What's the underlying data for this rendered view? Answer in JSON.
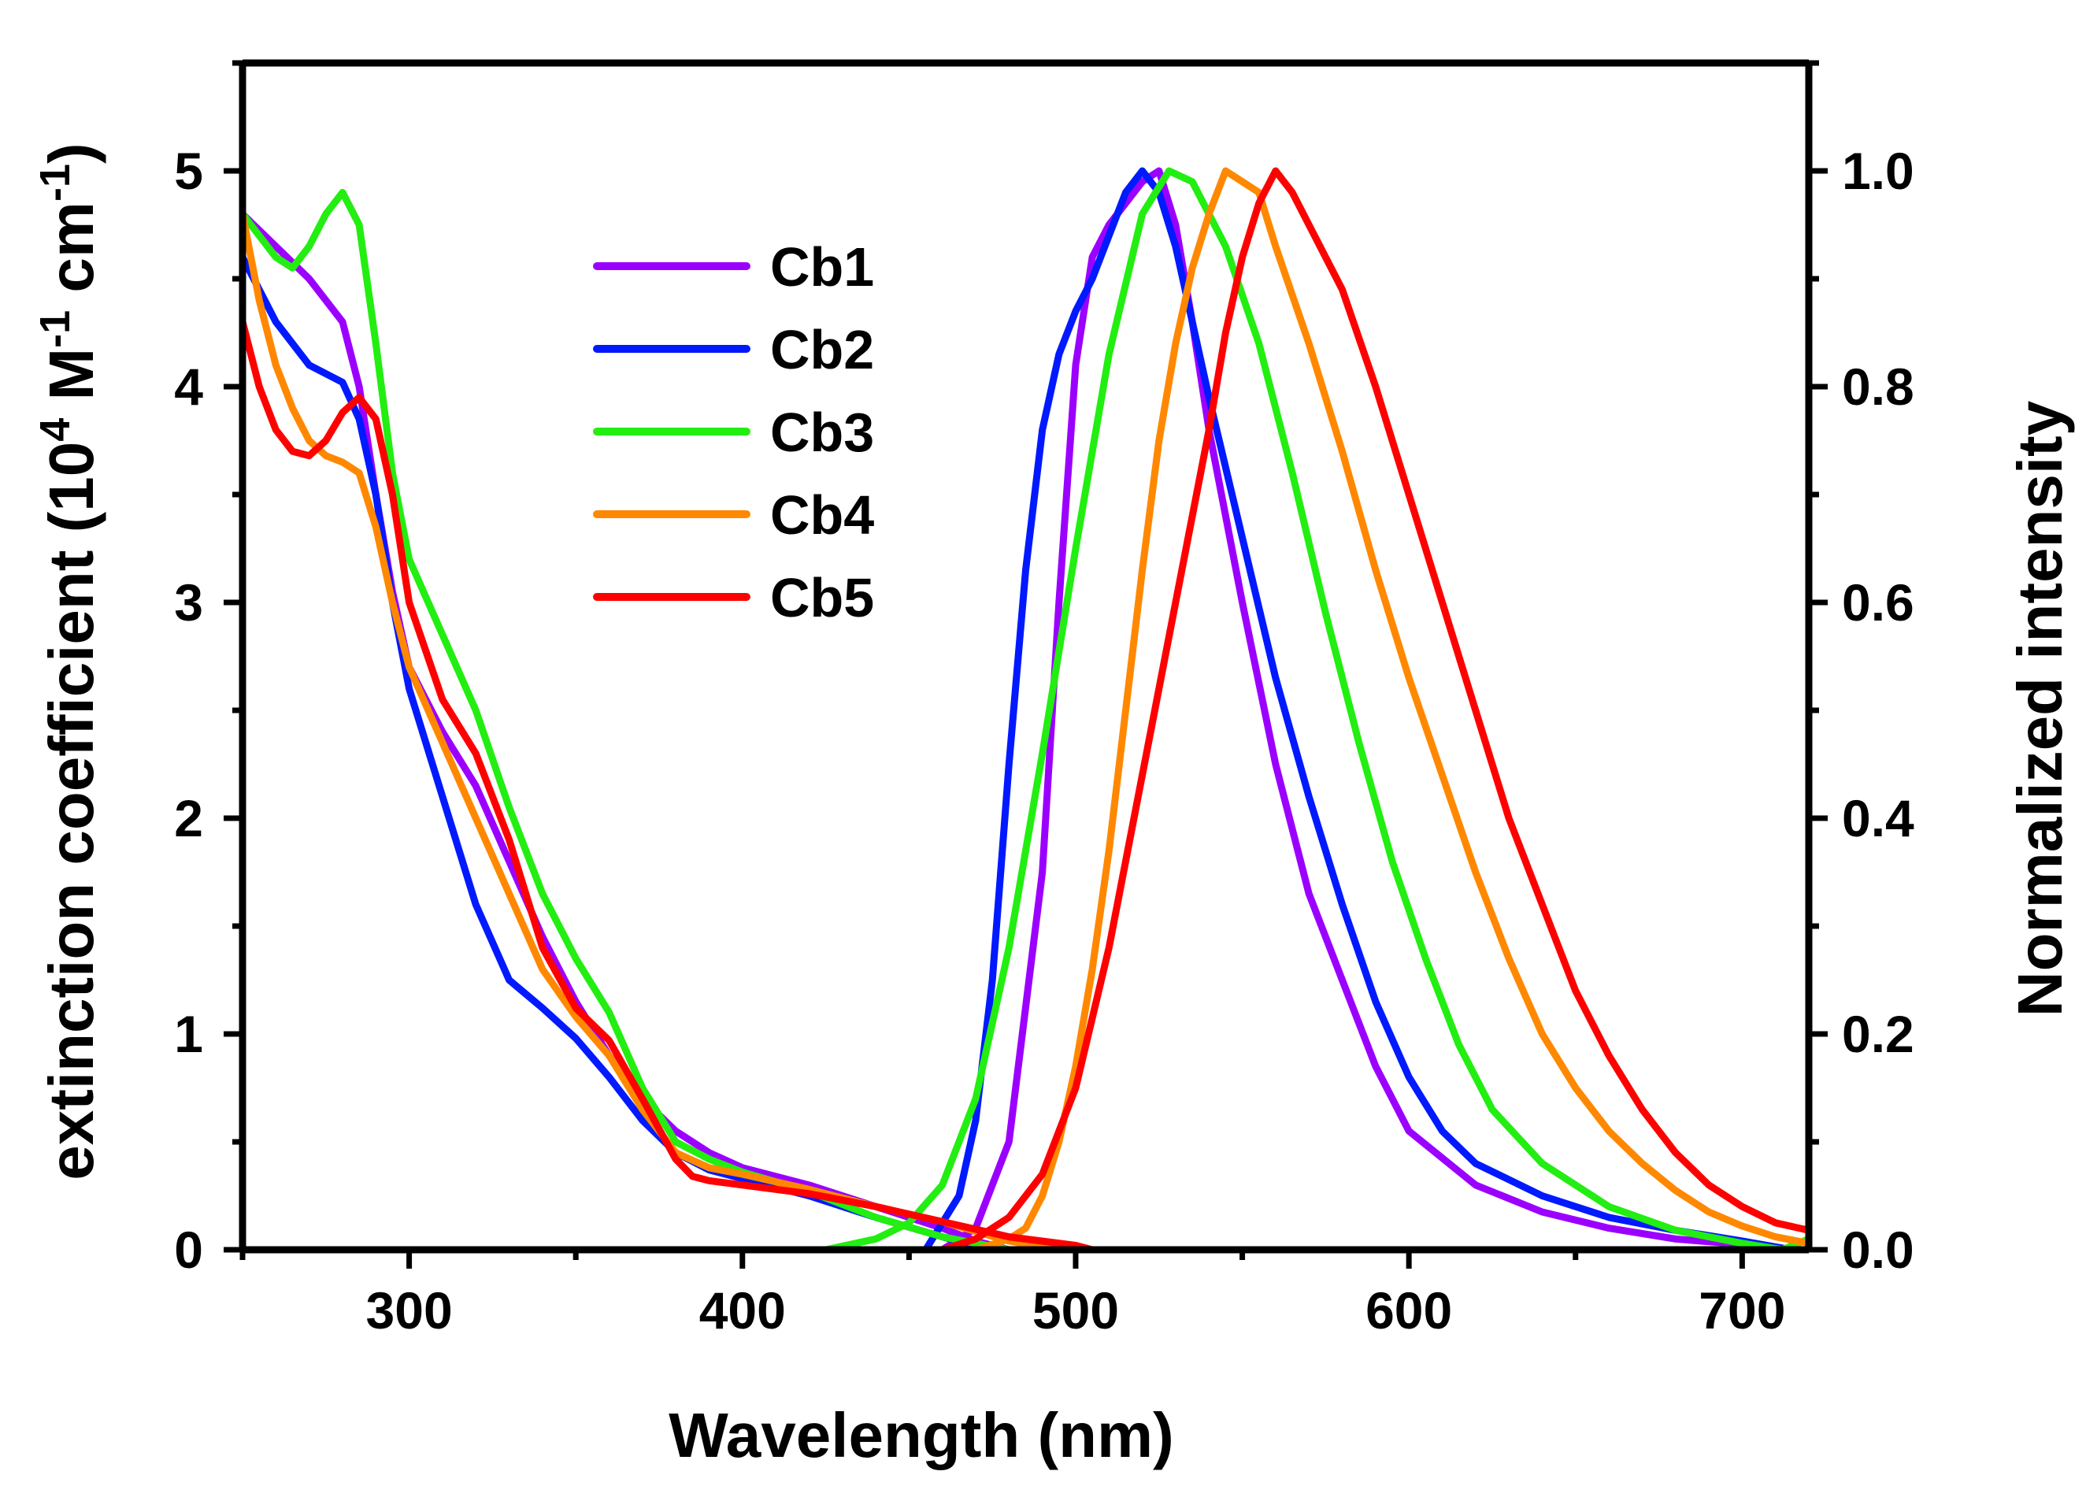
{
  "chart_data": {
    "type": "line",
    "title": "",
    "xlabel": "Wavelength (nm)",
    "ylabel_left": {
      "text": "extinction coefficient (10",
      "sup1": "4",
      "mid1": " M",
      "sup2": "-1",
      "mid2": " cm",
      "sup3": "-1",
      "end": ")"
    },
    "ylabel_right": "Normalized intensity",
    "xlim": [
      250,
      720
    ],
    "ylim_left": [
      0,
      5.5
    ],
    "ylim_right": [
      0,
      1.1
    ],
    "x_ticks": [
      300,
      400,
      500,
      600,
      700
    ],
    "y_ticks_left": [
      0,
      1,
      2,
      3,
      4,
      5
    ],
    "y_ticks_right": [
      0.0,
      0.2,
      0.4,
      0.6,
      0.8,
      1.0
    ],
    "x_tick_labels": [
      "300",
      "400",
      "500",
      "600",
      "700"
    ],
    "y_tick_labels_left": [
      "0",
      "1",
      "2",
      "3",
      "4",
      "5"
    ],
    "y_tick_labels_right": [
      "0.0",
      "0.2",
      "0.4",
      "0.6",
      "0.8",
      "1.0"
    ],
    "legend": [
      "Cb1",
      "Cb2",
      "Cb3",
      "Cb4",
      "Cb5"
    ],
    "legend_position": "upper-left",
    "series": [
      {
        "name": "Cb1",
        "color": "#9b00ff",
        "absorption": [
          [
            250,
            4.8
          ],
          [
            260,
            4.65
          ],
          [
            270,
            4.5
          ],
          [
            280,
            4.3
          ],
          [
            285,
            4.0
          ],
          [
            290,
            3.5
          ],
          [
            295,
            3.05
          ],
          [
            300,
            2.7
          ],
          [
            310,
            2.4
          ],
          [
            320,
            2.15
          ],
          [
            330,
            1.8
          ],
          [
            340,
            1.45
          ],
          [
            350,
            1.15
          ],
          [
            360,
            0.9
          ],
          [
            370,
            0.7
          ],
          [
            380,
            0.55
          ],
          [
            390,
            0.45
          ],
          [
            400,
            0.38
          ],
          [
            420,
            0.3
          ],
          [
            440,
            0.2
          ],
          [
            460,
            0.1
          ],
          [
            470,
            0.04
          ],
          [
            480,
            0.0
          ]
        ],
        "emission": [
          [
            460,
            0.0
          ],
          [
            470,
            0.02
          ],
          [
            480,
            0.1
          ],
          [
            490,
            0.35
          ],
          [
            495,
            0.6
          ],
          [
            500,
            0.82
          ],
          [
            505,
            0.92
          ],
          [
            510,
            0.95
          ],
          [
            515,
            0.97
          ],
          [
            520,
            0.99
          ],
          [
            525,
            1.0
          ],
          [
            530,
            0.95
          ],
          [
            535,
            0.86
          ],
          [
            540,
            0.76
          ],
          [
            550,
            0.6
          ],
          [
            560,
            0.45
          ],
          [
            570,
            0.33
          ],
          [
            580,
            0.25
          ],
          [
            590,
            0.17
          ],
          [
            600,
            0.11
          ],
          [
            620,
            0.06
          ],
          [
            640,
            0.035
          ],
          [
            660,
            0.02
          ],
          [
            680,
            0.01
          ],
          [
            700,
            0.005
          ],
          [
            715,
            0.0
          ]
        ]
      },
      {
        "name": "Cb2",
        "color": "#0019ff",
        "absorption": [
          [
            250,
            4.6
          ],
          [
            260,
            4.3
          ],
          [
            270,
            4.1
          ],
          [
            280,
            4.02
          ],
          [
            285,
            3.85
          ],
          [
            290,
            3.5
          ],
          [
            295,
            3.0
          ],
          [
            300,
            2.6
          ],
          [
            310,
            2.1
          ],
          [
            320,
            1.6
          ],
          [
            330,
            1.25
          ],
          [
            340,
            1.12
          ],
          [
            350,
            0.98
          ],
          [
            360,
            0.8
          ],
          [
            370,
            0.6
          ],
          [
            380,
            0.45
          ],
          [
            390,
            0.37
          ],
          [
            400,
            0.33
          ],
          [
            420,
            0.25
          ],
          [
            440,
            0.15
          ],
          [
            460,
            0.06
          ],
          [
            470,
            0.02
          ],
          [
            480,
            0.0
          ]
        ],
        "emission": [
          [
            455,
            0.0
          ],
          [
            465,
            0.05
          ],
          [
            470,
            0.12
          ],
          [
            475,
            0.25
          ],
          [
            480,
            0.45
          ],
          [
            485,
            0.63
          ],
          [
            490,
            0.76
          ],
          [
            495,
            0.83
          ],
          [
            500,
            0.87
          ],
          [
            505,
            0.9
          ],
          [
            510,
            0.94
          ],
          [
            515,
            0.98
          ],
          [
            520,
            1.0
          ],
          [
            525,
            0.98
          ],
          [
            530,
            0.93
          ],
          [
            540,
            0.79
          ],
          [
            550,
            0.66
          ],
          [
            560,
            0.53
          ],
          [
            570,
            0.42
          ],
          [
            580,
            0.32
          ],
          [
            590,
            0.23
          ],
          [
            600,
            0.16
          ],
          [
            610,
            0.11
          ],
          [
            620,
            0.08
          ],
          [
            640,
            0.05
          ],
          [
            660,
            0.03
          ],
          [
            680,
            0.018
          ],
          [
            700,
            0.008
          ],
          [
            715,
            0.0
          ]
        ]
      },
      {
        "name": "Cb3",
        "color": "#22ee11",
        "absorption": [
          [
            250,
            4.8
          ],
          [
            260,
            4.6
          ],
          [
            265,
            4.55
          ],
          [
            270,
            4.65
          ],
          [
            275,
            4.8
          ],
          [
            280,
            4.9
          ],
          [
            285,
            4.75
          ],
          [
            290,
            4.2
          ],
          [
            295,
            3.6
          ],
          [
            300,
            3.2
          ],
          [
            310,
            2.85
          ],
          [
            320,
            2.5
          ],
          [
            330,
            2.05
          ],
          [
            340,
            1.65
          ],
          [
            350,
            1.35
          ],
          [
            360,
            1.1
          ],
          [
            370,
            0.75
          ],
          [
            380,
            0.5
          ],
          [
            390,
            0.42
          ],
          [
            400,
            0.36
          ],
          [
            420,
            0.27
          ],
          [
            440,
            0.15
          ],
          [
            460,
            0.06
          ],
          [
            480,
            0.0
          ]
        ],
        "emission": [
          [
            425,
            0.0
          ],
          [
            440,
            0.01
          ],
          [
            450,
            0.025
          ],
          [
            460,
            0.06
          ],
          [
            470,
            0.14
          ],
          [
            480,
            0.28
          ],
          [
            490,
            0.46
          ],
          [
            500,
            0.65
          ],
          [
            510,
            0.83
          ],
          [
            520,
            0.96
          ],
          [
            528,
            1.0
          ],
          [
            535,
            0.99
          ],
          [
            545,
            0.93
          ],
          [
            555,
            0.84
          ],
          [
            565,
            0.72
          ],
          [
            575,
            0.59
          ],
          [
            585,
            0.47
          ],
          [
            595,
            0.36
          ],
          [
            605,
            0.27
          ],
          [
            615,
            0.19
          ],
          [
            625,
            0.13
          ],
          [
            640,
            0.08
          ],
          [
            660,
            0.04
          ],
          [
            680,
            0.018
          ],
          [
            700,
            0.006
          ],
          [
            712,
            0.0
          ],
          [
            720,
            0.01
          ]
        ]
      },
      {
        "name": "Cb4",
        "color": "#ff8800",
        "absorption": [
          [
            250,
            4.8
          ],
          [
            255,
            4.4
          ],
          [
            260,
            4.1
          ],
          [
            265,
            3.9
          ],
          [
            270,
            3.75
          ],
          [
            275,
            3.68
          ],
          [
            280,
            3.65
          ],
          [
            285,
            3.6
          ],
          [
            290,
            3.35
          ],
          [
            295,
            3.0
          ],
          [
            300,
            2.7
          ],
          [
            310,
            2.35
          ],
          [
            320,
            2.0
          ],
          [
            330,
            1.65
          ],
          [
            340,
            1.3
          ],
          [
            350,
            1.08
          ],
          [
            360,
            0.9
          ],
          [
            370,
            0.65
          ],
          [
            380,
            0.45
          ],
          [
            390,
            0.38
          ],
          [
            400,
            0.35
          ],
          [
            420,
            0.28
          ],
          [
            440,
            0.2
          ],
          [
            460,
            0.13
          ],
          [
            480,
            0.04
          ],
          [
            495,
            0.0
          ]
        ],
        "emission": [
          [
            470,
            0.0
          ],
          [
            480,
            0.01
          ],
          [
            485,
            0.02
          ],
          [
            490,
            0.05
          ],
          [
            495,
            0.1
          ],
          [
            500,
            0.17
          ],
          [
            505,
            0.26
          ],
          [
            510,
            0.37
          ],
          [
            515,
            0.5
          ],
          [
            520,
            0.63
          ],
          [
            525,
            0.75
          ],
          [
            530,
            0.84
          ],
          [
            535,
            0.91
          ],
          [
            540,
            0.96
          ],
          [
            545,
            1.0
          ],
          [
            550,
            0.99
          ],
          [
            555,
            0.98
          ],
          [
            560,
            0.93
          ],
          [
            570,
            0.84
          ],
          [
            580,
            0.74
          ],
          [
            590,
            0.63
          ],
          [
            600,
            0.53
          ],
          [
            610,
            0.44
          ],
          [
            620,
            0.35
          ],
          [
            630,
            0.27
          ],
          [
            640,
            0.2
          ],
          [
            650,
            0.15
          ],
          [
            660,
            0.11
          ],
          [
            670,
            0.08
          ],
          [
            680,
            0.055
          ],
          [
            690,
            0.035
          ],
          [
            700,
            0.022
          ],
          [
            710,
            0.012
          ],
          [
            720,
            0.006
          ]
        ]
      },
      {
        "name": "Cb5",
        "color": "#ff0000",
        "absorption": [
          [
            250,
            4.3
          ],
          [
            255,
            4.0
          ],
          [
            260,
            3.8
          ],
          [
            265,
            3.7
          ],
          [
            270,
            3.68
          ],
          [
            275,
            3.75
          ],
          [
            280,
            3.88
          ],
          [
            285,
            3.95
          ],
          [
            290,
            3.85
          ],
          [
            295,
            3.5
          ],
          [
            300,
            3.0
          ],
          [
            310,
            2.55
          ],
          [
            320,
            2.3
          ],
          [
            330,
            1.9
          ],
          [
            340,
            1.4
          ],
          [
            350,
            1.12
          ],
          [
            360,
            0.97
          ],
          [
            370,
            0.7
          ],
          [
            380,
            0.42
          ],
          [
            385,
            0.34
          ],
          [
            390,
            0.32
          ],
          [
            400,
            0.3
          ],
          [
            420,
            0.26
          ],
          [
            440,
            0.2
          ],
          [
            460,
            0.13
          ],
          [
            480,
            0.06
          ],
          [
            500,
            0.02
          ],
          [
            505,
            0.0
          ]
        ],
        "emission": [
          [
            460,
            0.0
          ],
          [
            470,
            0.01
          ],
          [
            480,
            0.03
          ],
          [
            490,
            0.07
          ],
          [
            500,
            0.15
          ],
          [
            510,
            0.28
          ],
          [
            520,
            0.44
          ],
          [
            530,
            0.6
          ],
          [
            540,
            0.76
          ],
          [
            545,
            0.85
          ],
          [
            550,
            0.92
          ],
          [
            555,
            0.97
          ],
          [
            560,
            1.0
          ],
          [
            565,
            0.98
          ],
          [
            570,
            0.95
          ],
          [
            580,
            0.89
          ],
          [
            590,
            0.8
          ],
          [
            600,
            0.7
          ],
          [
            610,
            0.6
          ],
          [
            620,
            0.5
          ],
          [
            630,
            0.4
          ],
          [
            640,
            0.32
          ],
          [
            650,
            0.24
          ],
          [
            660,
            0.18
          ],
          [
            670,
            0.13
          ],
          [
            680,
            0.09
          ],
          [
            690,
            0.06
          ],
          [
            700,
            0.04
          ],
          [
            710,
            0.025
          ],
          [
            720,
            0.018
          ]
        ]
      }
    ]
  }
}
